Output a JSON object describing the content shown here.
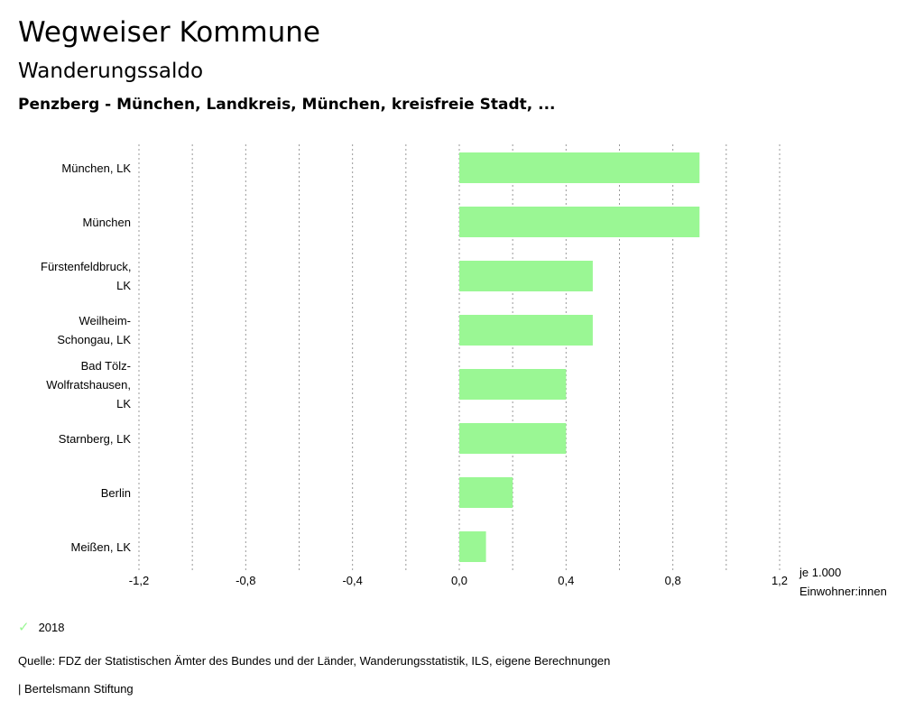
{
  "header": {
    "title": "Wegweiser Kommune",
    "subtitle": "Wanderungssaldo",
    "region": "Penzberg - München, Landkreis, München, kreisfreie Stadt, ..."
  },
  "chart_data": {
    "type": "bar",
    "orientation": "horizontal",
    "categories": [
      "München, LK",
      "München",
      "Fürstenfeldbruck, LK",
      "Weilheim-Schongau, LK",
      "Bad Tölz-Wolfratshausen, LK",
      "Starnberg, LK",
      "Berlin",
      "Meißen, LK"
    ],
    "series": [
      {
        "name": "2018",
        "color": "#9af794",
        "values": [
          0.9,
          0.9,
          0.5,
          0.5,
          0.4,
          0.4,
          0.2,
          0.1
        ]
      }
    ],
    "xlim": [
      -1.2,
      1.2
    ],
    "xticks": [
      -1.2,
      -0.8,
      -0.4,
      0.0,
      0.4,
      0.8,
      1.2
    ],
    "xtick_labels": [
      "-1,2",
      "-0,8",
      "-0,4",
      "0,0",
      "0,4",
      "0,8",
      "1,2"
    ],
    "grid_step": 0.2,
    "xlabel": [
      "je 1.000",
      "Einwohner:innen"
    ],
    "legend": "bottom-left"
  },
  "legend": {
    "label": "2018"
  },
  "footer": {
    "source": "Quelle: FDZ der Statistischen Ämter des Bundes und der Länder, Wanderungsstatistik, ILS, eigene Berechnungen",
    "credit": "| Bertelsmann Stiftung"
  }
}
